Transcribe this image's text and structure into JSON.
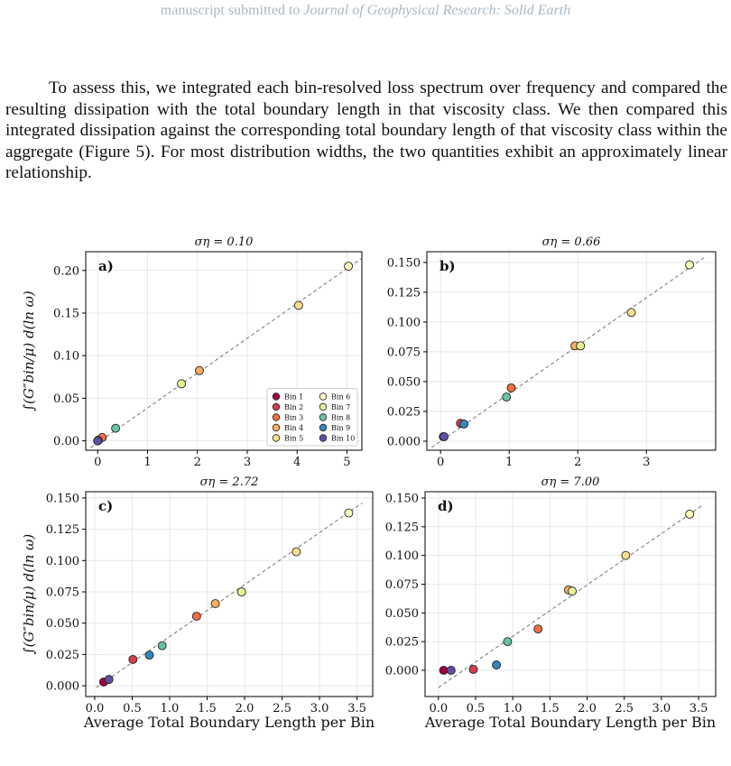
{
  "header": {
    "prefix": "manuscript submitted to",
    "journal": "Journal of Geophysical Research: Solid Earth"
  },
  "paragraph": "To assess this, we integrated each bin-resolved loss spectrum over frequency and compared the resulting dissipation with the total boundary length in that viscosity class. We then compared this integrated dissipation against the corresponding total boundary length of that viscosity class within the aggregate (Figure 5). For most distribution widths, the two quantities exhibit an approximately linear relationship.",
  "chart_data": [
    {
      "type": "scatter",
      "title": "ση = 0.10",
      "panel_label": "a)",
      "y_label": "∫(G″bin/μ) d(ln ω)",
      "xlim": [
        -0.24,
        5.3
      ],
      "ylim": [
        -0.011,
        0.222
      ],
      "xticks": [
        0,
        1,
        2,
        3,
        4,
        5
      ],
      "yticks": [
        {
          "value": 0,
          "label": "0.00"
        },
        0.05,
        {
          "value": 0.1,
          "label": "0.10"
        },
        0.15,
        {
          "value": 0.2,
          "label": "0.20"
        }
      ],
      "grid": true,
      "legend": "lower right",
      "fit_line": {
        "x": [
          -0.14,
          5.29
        ],
        "y": [
          -0.008,
          0.214
        ],
        "color": "#808080"
      },
      "series": [
        {
          "name": "Bin 1",
          "color": "#9e0142",
          "x": [
            0
          ],
          "values": [
            0
          ]
        },
        {
          "name": "Bin 2",
          "color": "#d53e4f",
          "x": [
            0.02
          ],
          "values": [
            0.001
          ]
        },
        {
          "name": "Bin 3",
          "color": "#f46d43",
          "x": [
            0.09
          ],
          "values": [
            0.004
          ]
        },
        {
          "name": "Bin 4",
          "color": "#fdae61",
          "x": [
            2.04
          ],
          "values": [
            0.0825
          ]
        },
        {
          "name": "Bin 5",
          "color": "#fee08b",
          "x": [
            4.03
          ],
          "values": [
            0.159
          ]
        },
        {
          "name": "Bin 6",
          "color": "#ffffbf",
          "x": [
            5.03
          ],
          "values": [
            0.205
          ]
        },
        {
          "name": "Bin 7",
          "color": "#e6f598",
          "x": [
            1.68
          ],
          "values": [
            0.067
          ]
        },
        {
          "name": "Bin 8",
          "color": "#66c2a5",
          "x": [
            0.36
          ],
          "values": [
            0.0148
          ]
        },
        {
          "name": "Bin 9",
          "color": "#3288bd",
          "x": [
            0.01
          ],
          "values": [
            0.0005
          ]
        },
        {
          "name": "Bin 10",
          "color": "#5e4fa2",
          "x": [
            0
          ],
          "values": [
            0
          ]
        }
      ]
    },
    {
      "type": "scatter",
      "title": "ση = 0.66",
      "panel_label": "b)",
      "xlim": [
        -0.2,
        4.01
      ],
      "ylim": [
        -0.0076,
        0.159
      ],
      "xticks": [
        0,
        1,
        2,
        3
      ],
      "yticks": [
        {
          "value": 0,
          "label": "0.000"
        },
        0.025,
        {
          "value": 0.05,
          "label": "0.050"
        },
        0.075,
        {
          "value": 0.1,
          "label": "0.100"
        },
        0.125,
        {
          "value": 0.15,
          "label": "0.150"
        }
      ],
      "grid": true,
      "fit_line": {
        "x": [
          -0.13,
          3.84
        ],
        "y": [
          -0.0053,
          0.154
        ],
        "color": "#808080"
      },
      "series": [
        {
          "color": "#9e0142",
          "x": [
            0.04
          ],
          "values": [
            0.0038
          ]
        },
        {
          "color": "#d53e4f",
          "x": [
            0.29
          ],
          "values": [
            0.015
          ]
        },
        {
          "color": "#f46d43",
          "x": [
            1.03
          ],
          "values": [
            0.0447
          ]
        },
        {
          "color": "#fdae61",
          "x": [
            1.96
          ],
          "values": [
            0.08
          ]
        },
        {
          "color": "#fee08b",
          "x": [
            2.78
          ],
          "values": [
            0.108
          ]
        },
        {
          "color": "#ffffbf",
          "x": [
            3.63
          ],
          "values": [
            0.148
          ]
        },
        {
          "color": "#e6f598",
          "x": [
            2.04
          ],
          "values": [
            0.08
          ]
        },
        {
          "color": "#66c2a5",
          "x": [
            0.96
          ],
          "values": [
            0.037
          ]
        },
        {
          "color": "#3288bd",
          "x": [
            0.34
          ],
          "values": [
            0.0144
          ]
        },
        {
          "color": "#5e4fa2",
          "x": [
            0.05
          ],
          "values": [
            0.0038
          ]
        }
      ]
    },
    {
      "type": "scatter",
      "title": "ση = 2.72",
      "panel_label": "c)",
      "y_label": "∫(G″bin/μ) d(ln ω)",
      "x_label": "Average Total Boundary Length per Bin",
      "xlim": [
        -0.12,
        3.71
      ],
      "ylim": [
        -0.0086,
        0.155
      ],
      "xticks": [
        {
          "value": 0,
          "label": "0.0"
        },
        0.5,
        {
          "value": 1,
          "label": "1.0"
        },
        1.5,
        {
          "value": 2,
          "label": "2.0"
        },
        2.5,
        {
          "value": 3,
          "label": "3.0"
        },
        3.5
      ],
      "yticks": [
        {
          "value": 0,
          "label": "0.000"
        },
        0.025,
        {
          "value": 0.05,
          "label": "0.050"
        },
        0.075,
        {
          "value": 0.1,
          "label": "0.100"
        },
        0.125,
        {
          "value": 0.15,
          "label": "0.150"
        }
      ],
      "grid": true,
      "fit_line": {
        "x": [
          0.02,
          3.57
        ],
        "y": [
          -0.0014,
          0.146
        ],
        "color": "#808080"
      },
      "series": [
        {
          "color": "#9e0142",
          "x": [
            0.12
          ],
          "values": [
            0.003
          ]
        },
        {
          "color": "#d53e4f",
          "x": [
            0.51
          ],
          "values": [
            0.021
          ]
        },
        {
          "color": "#f46d43",
          "x": [
            1.36
          ],
          "values": [
            0.0555
          ]
        },
        {
          "color": "#fdae61",
          "x": [
            1.61
          ],
          "values": [
            0.0656
          ]
        },
        {
          "color": "#fee08b",
          "x": [
            2.69
          ],
          "values": [
            0.107
          ]
        },
        {
          "color": "#ffffbf",
          "x": [
            3.39
          ],
          "values": [
            0.138
          ]
        },
        {
          "color": "#e6f598",
          "x": [
            1.96
          ],
          "values": [
            0.075
          ]
        },
        {
          "color": "#66c2a5",
          "x": [
            0.9
          ],
          "values": [
            0.032
          ]
        },
        {
          "color": "#3288bd",
          "x": [
            0.73
          ],
          "values": [
            0.0245
          ]
        },
        {
          "color": "#5e4fa2",
          "x": [
            0.19
          ],
          "values": [
            0.005
          ]
        }
      ]
    },
    {
      "type": "scatter",
      "title": "ση = 7.00",
      "panel_label": "d)",
      "x_label": "Average Total Boundary Length per Bin",
      "xlim": [
        -0.18,
        3.73
      ],
      "ylim": [
        -0.0228,
        0.1555
      ],
      "xticks": [
        {
          "value": 0,
          "label": "0.0"
        },
        0.5,
        {
          "value": 1,
          "label": "1.0"
        },
        1.5,
        {
          "value": 2,
          "label": "2.0"
        },
        2.5,
        {
          "value": 3,
          "label": "3.0"
        },
        3.5
      ],
      "yticks": [
        {
          "value": 0,
          "label": "0.000"
        },
        0.025,
        {
          "value": 0.05,
          "label": "0.050"
        },
        0.075,
        {
          "value": 0.1,
          "label": "0.100"
        },
        0.125,
        {
          "value": 0.15,
          "label": "0.150"
        }
      ],
      "grid": true,
      "fit_line": {
        "x": [
          0,
          3.56
        ],
        "y": [
          -0.015,
          0.144
        ],
        "color": "#808080"
      },
      "series": [
        {
          "color": "#9e0142",
          "x": [
            0.07
          ],
          "values": [
            0
          ]
        },
        {
          "color": "#d53e4f",
          "x": [
            0.47
          ],
          "values": [
            0.0008
          ]
        },
        {
          "color": "#f46d43",
          "x": [
            1.34
          ],
          "values": [
            0.036
          ]
        },
        {
          "color": "#fdae61",
          "x": [
            1.75
          ],
          "values": [
            0.07
          ]
        },
        {
          "color": "#fee08b",
          "x": [
            2.52
          ],
          "values": [
            0.1
          ]
        },
        {
          "color": "#ffffbf",
          "x": [
            3.38
          ],
          "values": [
            0.136
          ]
        },
        {
          "color": "#e6f598",
          "x": [
            1.8
          ],
          "values": [
            0.069
          ]
        },
        {
          "color": "#66c2a5",
          "x": [
            0.93
          ],
          "values": [
            0.025
          ]
        },
        {
          "color": "#3288bd",
          "x": [
            0.78
          ],
          "values": [
            0.0047
          ]
        },
        {
          "color": "#5e4fa2",
          "x": [
            0.17
          ],
          "values": [
            0
          ]
        }
      ]
    }
  ]
}
